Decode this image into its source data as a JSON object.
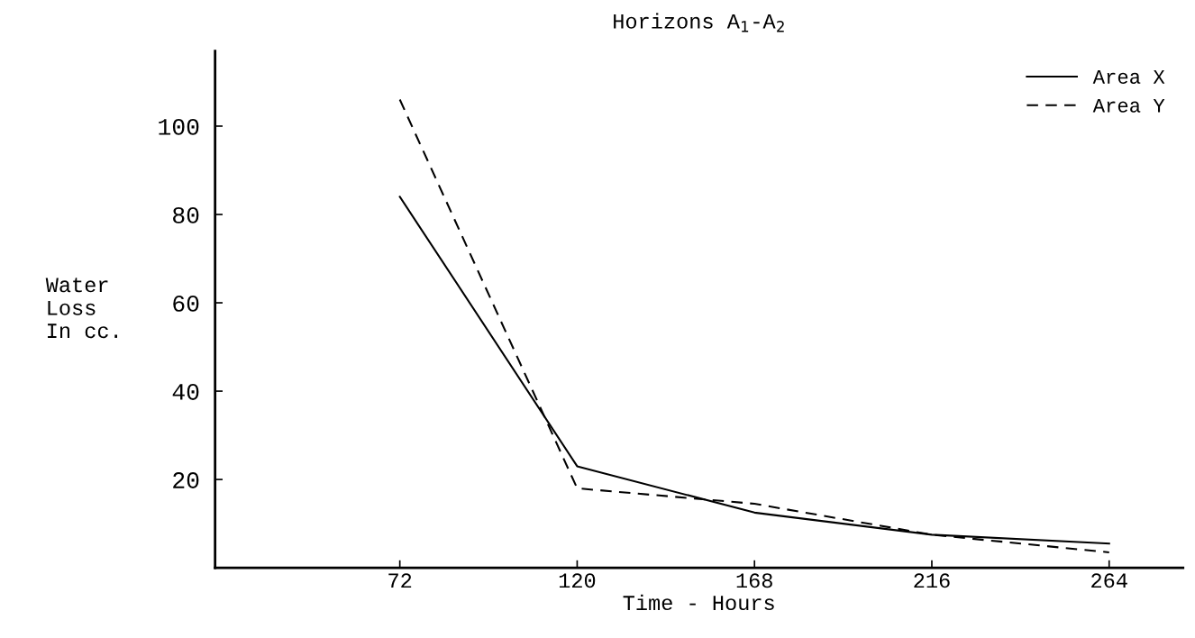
{
  "chart_data": {
    "type": "line",
    "title": "Horizons A$_{1}$-A$_{2}$",
    "xlabel": "Time - Hours",
    "ylabel": "Water\nLoss\nIn cc.",
    "x": [
      72,
      120,
      168,
      216,
      264
    ],
    "series": [
      {
        "name": "Area X",
        "color": "#000000",
        "line_style": "solid",
        "values": [
          84,
          23,
          12.5,
          7.5,
          5.5
        ]
      },
      {
        "name": "Area Y",
        "color": "#000000",
        "line_style": "dashed",
        "values": [
          106,
          18,
          14.5,
          7.5,
          3.5
        ]
      }
    ],
    "xlim": [
      22,
      284
    ],
    "xticks": [
      72,
      120,
      168,
      216,
      264
    ],
    "ylim": [
      0,
      117
    ],
    "yticks": [
      20,
      40,
      60,
      80,
      100
    ],
    "grid": false,
    "legend": "top right",
    "marker": "none"
  }
}
